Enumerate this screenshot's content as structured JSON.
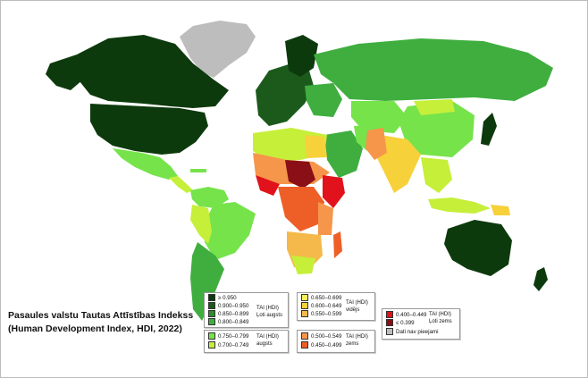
{
  "title": {
    "line1": "Pasaules valstu Tautas Attīstības Indekss",
    "line2": "(Human Development Index, HDI, 2022)"
  },
  "colors": {
    "ocean": "#ffffff",
    "very_high_1": "#0d3a0d",
    "very_high_2": "#1c5a1c",
    "very_high_3": "#2e8b2e",
    "very_high_4": "#3fae3f",
    "high_1": "#76e34b",
    "high_2": "#c6ef3a",
    "medium_1": "#fbf05b",
    "medium_2": "#f7d13a",
    "medium_3": "#f4b94a",
    "low_1": "#f5964a",
    "low_2": "#ee5f28",
    "vlow_1": "#e1121b",
    "vlow_2": "#8a0f17",
    "no_data": "#bdbdbd"
  },
  "legend": {
    "very_high": {
      "items": [
        "≥ 0.950",
        "0.900–0.950",
        "0.850–0.899",
        "0.800–0.849"
      ],
      "group_line1": "TAI (HDI)",
      "group_line2": "Ļoti augsts"
    },
    "high": {
      "items": [
        "0.750–0.799",
        "0.700–0.749"
      ],
      "group_line1": "TAI (HDI)",
      "group_line2": "augsts"
    },
    "medium": {
      "items": [
        "0.650–0.699",
        "0.600–0.649",
        "0.550–0.599"
      ],
      "group_line1": "TAI (HDI)",
      "group_line2": "vidējs"
    },
    "low": {
      "items": [
        "0.500–0.549",
        "0.450–0.499"
      ],
      "group_line1": "TAI (HDI)",
      "group_line2": "zems"
    },
    "very_low": {
      "items": [
        "0.400–0.449",
        "≤ 0.399"
      ],
      "group_line1": "TAI (HDI)",
      "group_line2": "Ļoti zems",
      "no_data": "Dati nav pieejami"
    }
  }
}
